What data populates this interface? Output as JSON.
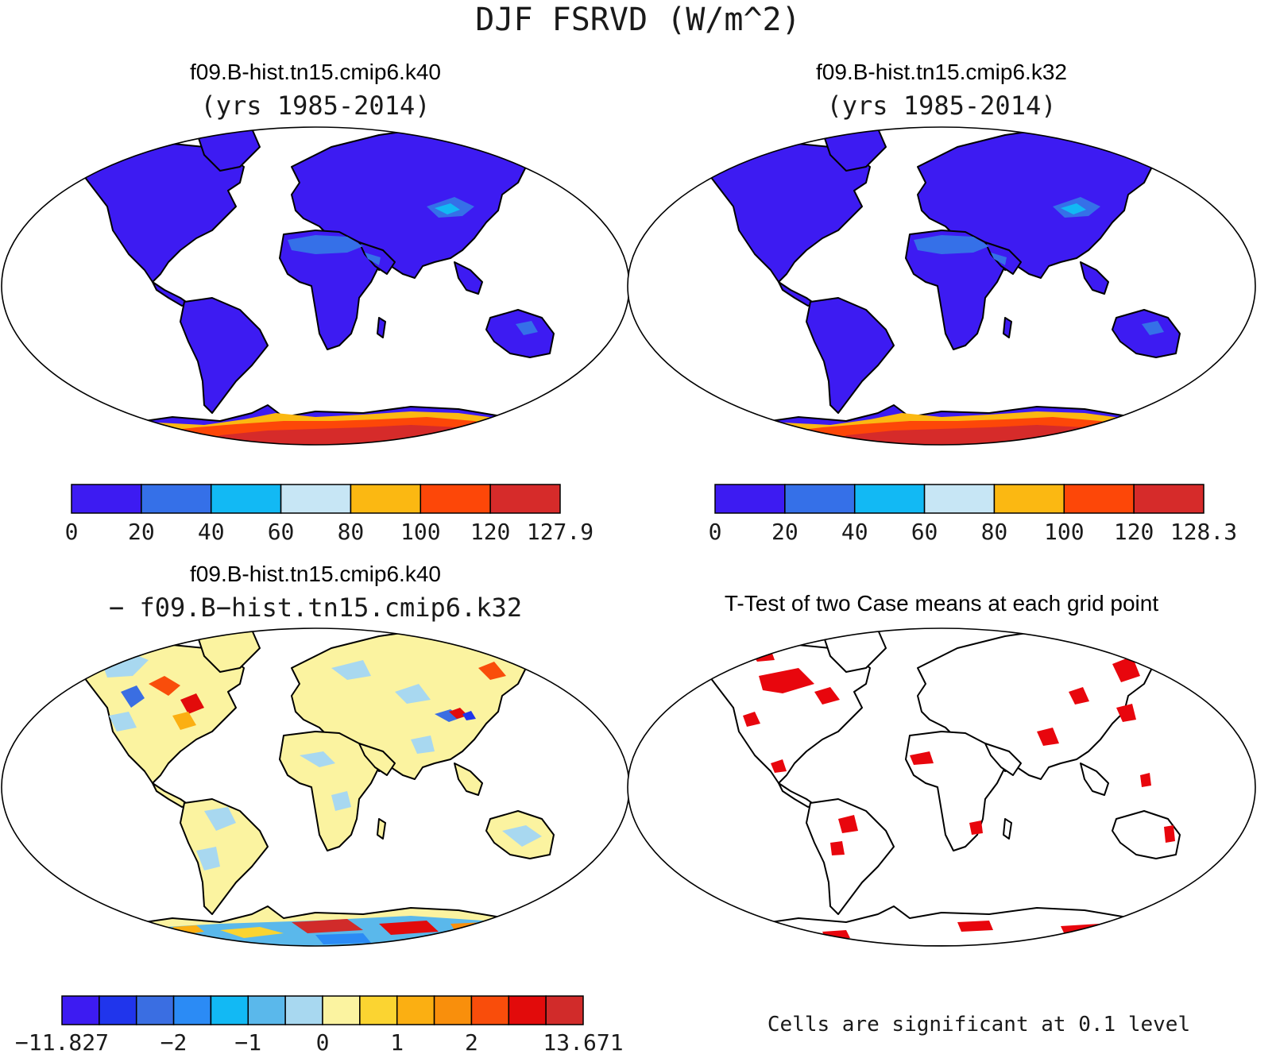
{
  "figure": {
    "main_title": "DJF FSRVD (W/m^2)"
  },
  "colors": {
    "land_fill": "#3d1bf2",
    "ocean_fill": "#ffffff",
    "outline": "#000000",
    "significant": "#e8060d"
  },
  "chart_data": [
    {
      "type": "heatmap",
      "panel": "top-left",
      "title": "f09.B-hist.tn15.cmip6.k40",
      "subtitle": "(yrs 1985-2014)",
      "levels": [
        0,
        20,
        40,
        60,
        80,
        100,
        120
      ],
      "max_value": 127.9,
      "tick_labels": [
        "0",
        "20",
        "40",
        "60",
        "80",
        "100",
        "120",
        "127.9"
      ],
      "colors": [
        "#3d1bf2",
        "#3570e8",
        "#12b9f4",
        "#c7e6f5",
        "#fbb812",
        "#fd4708",
        "#d62b2a"
      ]
    },
    {
      "type": "heatmap",
      "panel": "top-right",
      "title": "f09.B-hist.tn15.cmip6.k32",
      "subtitle": "(yrs 1985-2014)",
      "levels": [
        0,
        20,
        40,
        60,
        80,
        100,
        120
      ],
      "max_value": 128.3,
      "tick_labels": [
        "0",
        "20",
        "40",
        "60",
        "80",
        "100",
        "120",
        "128.3"
      ],
      "colors": [
        "#3d1bf2",
        "#3570e8",
        "#12b9f4",
        "#c7e6f5",
        "#fbb812",
        "#fd4708",
        "#d62b2a"
      ]
    },
    {
      "type": "heatmap",
      "panel": "bottom-left",
      "title": "f09.B-hist.tn15.cmip6.k40",
      "subtitle": "− f09.B−hist.tn15.cmip6.k32",
      "min_value": -11.827,
      "max_value": 13.671,
      "tick_labels": [
        "−11.827",
        "−2",
        "−1",
        "0",
        "1",
        "2",
        "13.671"
      ],
      "colors": [
        "#3d1bf2",
        "#2035ec",
        "#3a6ee2",
        "#2b8bf5",
        "#12b9f4",
        "#5ab8eb",
        "#a8d8f0",
        "#fbf3a0",
        "#fbd431",
        "#fbaf12",
        "#f98f0c",
        "#f94d0b",
        "#e20b0b",
        "#d12b2a"
      ]
    },
    {
      "type": "heatmap",
      "panel": "bottom-right",
      "title": "T-Test of two Case means at each grid point",
      "footnote": "Cells are significant at 0.1 level"
    }
  ]
}
